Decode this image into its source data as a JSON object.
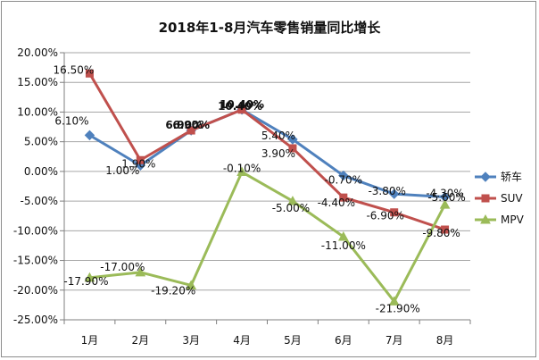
{
  "chart_data": {
    "type": "line",
    "title": "2018年1-8月汽车零售销量同比增长",
    "xlabel": "",
    "ylabel": "",
    "categories": [
      "1月",
      "2月",
      "3月",
      "4月",
      "5月",
      "6月",
      "7月",
      "8月"
    ],
    "ylim": [
      -25,
      20
    ],
    "ytick_step": 5,
    "y_tick_labels": [
      "20.00%",
      "15.00%",
      "10.00%",
      "5.00%",
      "0.00%",
      "-5.00%",
      "-10.00%",
      "-15.00%",
      "-20.00%",
      "-25.00%"
    ],
    "grid": true,
    "legend_position": "right",
    "series": [
      {
        "name": "轿车",
        "color": "#4f81bd",
        "marker": "diamond",
        "values": [
          6.1,
          1.0,
          6.9,
          10.4,
          5.4,
          -0.7,
          -3.8,
          -4.3
        ],
        "labels": [
          "6.10%",
          "1.00%",
          "6.90%",
          "10.40%",
          "5.40%",
          "-0.70%",
          "-3.80%",
          "-4.30%"
        ]
      },
      {
        "name": "SUV",
        "color": "#c0504d",
        "marker": "square",
        "values": [
          16.5,
          1.9,
          6.9,
          10.4,
          3.9,
          -4.4,
          -6.9,
          -9.8
        ],
        "labels": [
          "16.50%",
          "1.90%",
          "6.90%",
          "10.40%",
          "3.90%",
          "-4.40%",
          "-6.90%",
          "-9.80%"
        ]
      },
      {
        "name": "MPV",
        "color": "#9bbb59",
        "marker": "triangle",
        "values": [
          -17.9,
          -17.0,
          -19.2,
          -0.1,
          -5.0,
          -11.0,
          -21.9,
          -5.6
        ],
        "labels": [
          "-17.90%",
          "-17.00%",
          "-19.20%",
          "-0.10%",
          "-5.00%",
          "-11.00%",
          "-21.90%",
          "-5.60%"
        ]
      }
    ]
  }
}
